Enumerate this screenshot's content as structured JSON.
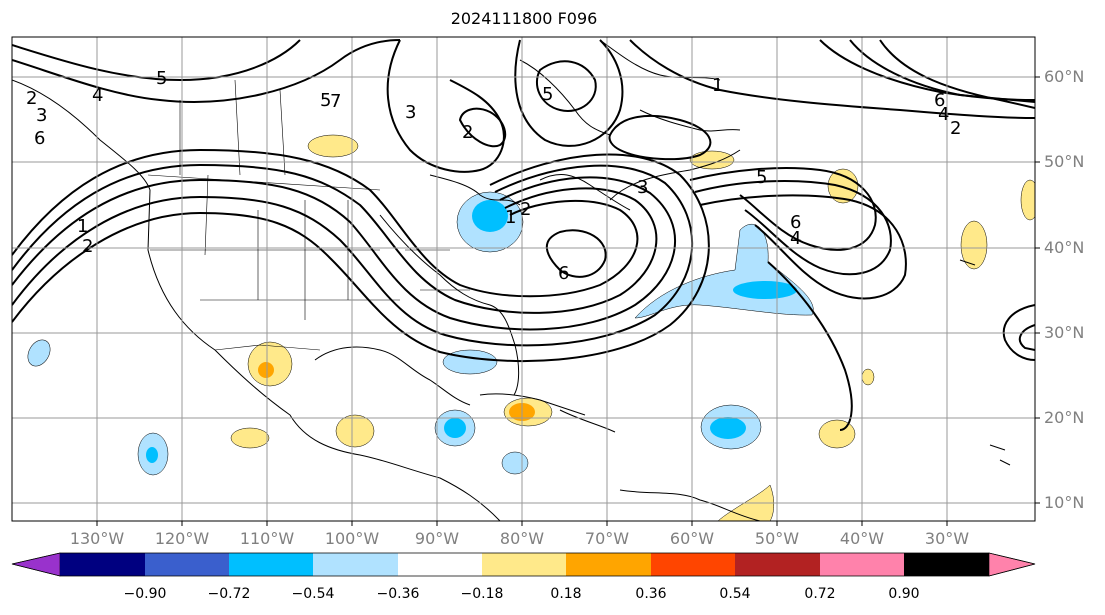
{
  "title": "2024111800 F096",
  "lat_labels": [
    "60°N",
    "50°N",
    "40°N",
    "30°N",
    "20°N",
    "10°N"
  ],
  "lon_labels": [
    "130°W",
    "120°W",
    "110°W",
    "100°W",
    "90°W",
    "80°W",
    "70°W",
    "60°W",
    "50°W",
    "40°W",
    "30°W"
  ],
  "contour_labels": [
    "5",
    "4",
    "2",
    "3",
    "6",
    "1",
    "2",
    "5",
    "7",
    "3",
    "2",
    "5",
    "1",
    "6",
    "4",
    "2",
    "5",
    "3",
    "6",
    "4",
    "1",
    "2",
    "6"
  ],
  "colorbar": {
    "tick_labels": [
      "−0.90",
      "−0.72",
      "−0.54",
      "−0.36",
      "−0.18",
      "0.18",
      "0.36",
      "0.54",
      "0.72",
      "0.90"
    ],
    "colors": [
      "#9932cc",
      "#000080",
      "#3a5fcd",
      "#00bfff",
      "#b0e2ff",
      "#ffffff",
      "#ffe98a",
      "#ffa500",
      "#ff4500",
      "#b22222",
      "#ff82ab"
    ]
  },
  "colors": {
    "grid": "#999999",
    "frame": "#000000",
    "tick_label": "#808080"
  }
}
